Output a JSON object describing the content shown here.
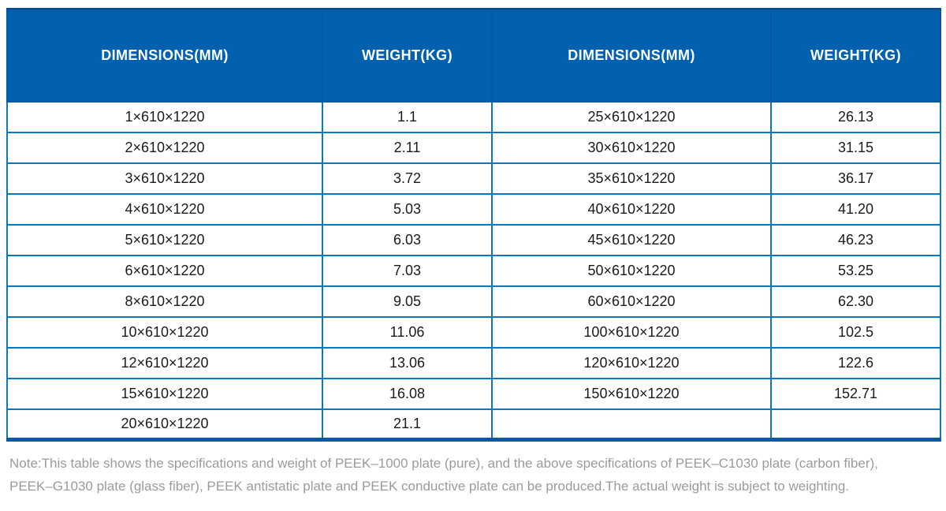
{
  "table": {
    "columns": [
      "DIMENSIONS(MM)",
      "WEIGHT(KG)",
      "DIMENSIONS(MM)",
      "WEIGHT(KG)"
    ],
    "rows": [
      [
        "1×610×1220",
        "1.1",
        "25×610×1220",
        "26.13"
      ],
      [
        "2×610×1220",
        "2.11",
        "30×610×1220",
        "31.15"
      ],
      [
        "3×610×1220",
        "3.72",
        "35×610×1220",
        "36.17"
      ],
      [
        "4×610×1220",
        "5.03",
        "40×610×1220",
        "41.20"
      ],
      [
        "5×610×1220",
        "6.03",
        "45×610×1220",
        "46.23"
      ],
      [
        "6×610×1220",
        "7.03",
        "50×610×1220",
        "53.25"
      ],
      [
        "8×610×1220",
        "9.05",
        "60×610×1220",
        "62.30"
      ],
      [
        "10×610×1220",
        "11.06",
        "100×610×1220",
        "102.5"
      ],
      [
        "12×610×1220",
        "13.06",
        "120×610×1220",
        "122.6"
      ],
      [
        "15×610×1220",
        "16.08",
        "150×610×1220",
        "152.71"
      ],
      [
        "20×610×1220",
        "21.1",
        "",
        ""
      ]
    ]
  },
  "note": {
    "line1": "Note:This table shows the specifications and weight of PEEK–1000 plate (pure), and the above specifications of PEEK–C1030 plate (carbon fiber),",
    "line2": "PEEK–G1030 plate (glass fiber), PEEK antistatic plate and PEEK conductive plate can be produced.The actual weight is subject to weighting."
  },
  "colors": {
    "header_bg": "#0161AF",
    "header_divider": "#02599F",
    "grid": "#0879C1",
    "outer_dark": "#0B58A4",
    "cell_text": "#1B1B1B",
    "note_text": "#9B9B9B"
  }
}
